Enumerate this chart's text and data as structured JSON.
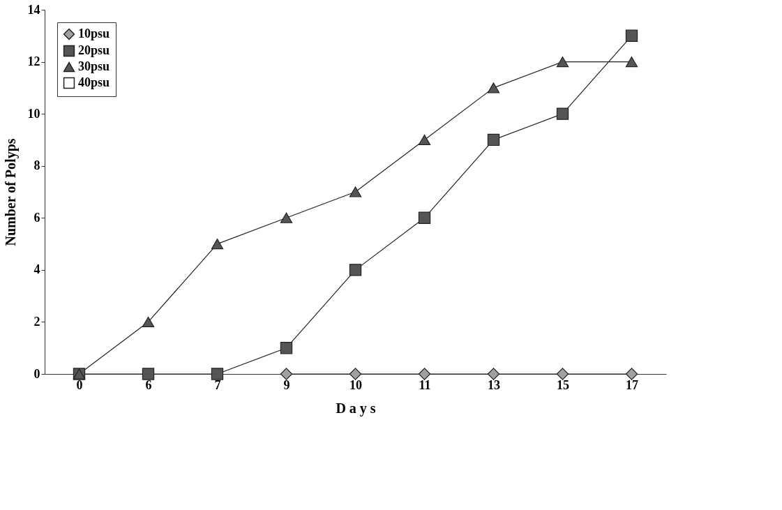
{
  "chart_data": {
    "type": "line",
    "xlabel": "D a y s",
    "ylabel": "Number of Polyps",
    "categories": [
      "0",
      "6",
      "7",
      "9",
      "10",
      "11",
      "13",
      "15",
      "17"
    ],
    "series": [
      {
        "name": "10psu",
        "color": "#a0a0a0",
        "marker": "diamond",
        "values": [
          null,
          null,
          null,
          0,
          0,
          0,
          0,
          0,
          0
        ]
      },
      {
        "name": "20psu",
        "color": "#555555",
        "marker": "square",
        "values": [
          0,
          0,
          0,
          1,
          4,
          6,
          9,
          10,
          13
        ]
      },
      {
        "name": "30psu",
        "color": "#555555",
        "marker": "triangle",
        "values": [
          0,
          2,
          5,
          6,
          7,
          9,
          11,
          12,
          12
        ]
      },
      {
        "name": "40psu",
        "color": "#222222",
        "marker": "square_open",
        "values": [
          null,
          null,
          null,
          null,
          null,
          null,
          null,
          null,
          null
        ]
      }
    ],
    "ylim": [
      0,
      14
    ],
    "yticks": [
      0,
      2,
      4,
      6,
      8,
      10,
      12,
      14
    ],
    "grid": false,
    "legend": "top left",
    "line_style": "solid"
  }
}
